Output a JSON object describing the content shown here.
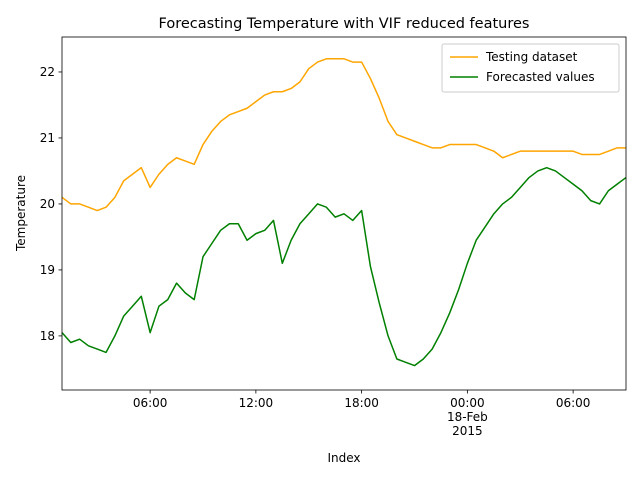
{
  "chart_data": {
    "type": "line",
    "title": "Forecasting Temperature with VIF reduced features",
    "xlabel": "Index",
    "ylabel": "Temperature",
    "x": [
      "2015-02-17T01:00",
      "2015-02-17T01:30",
      "2015-02-17T02:00",
      "2015-02-17T02:30",
      "2015-02-17T03:00",
      "2015-02-17T03:30",
      "2015-02-17T04:00",
      "2015-02-17T04:30",
      "2015-02-17T05:00",
      "2015-02-17T05:30",
      "2015-02-17T06:00",
      "2015-02-17T06:30",
      "2015-02-17T07:00",
      "2015-02-17T07:30",
      "2015-02-17T08:00",
      "2015-02-17T08:30",
      "2015-02-17T09:00",
      "2015-02-17T09:30",
      "2015-02-17T10:00",
      "2015-02-17T10:30",
      "2015-02-17T11:00",
      "2015-02-17T11:30",
      "2015-02-17T12:00",
      "2015-02-17T12:30",
      "2015-02-17T13:00",
      "2015-02-17T13:30",
      "2015-02-17T14:00",
      "2015-02-17T14:30",
      "2015-02-17T15:00",
      "2015-02-17T15:30",
      "2015-02-17T16:00",
      "2015-02-17T16:30",
      "2015-02-17T17:00",
      "2015-02-17T17:30",
      "2015-02-17T18:00",
      "2015-02-17T18:30",
      "2015-02-17T19:00",
      "2015-02-17T19:30",
      "2015-02-17T20:00",
      "2015-02-17T20:30",
      "2015-02-17T21:00",
      "2015-02-17T21:30",
      "2015-02-17T22:00",
      "2015-02-17T22:30",
      "2015-02-17T23:00",
      "2015-02-17T23:30",
      "2015-02-18T00:00",
      "2015-02-18T00:30",
      "2015-02-18T01:00",
      "2015-02-18T01:30",
      "2015-02-18T02:00",
      "2015-02-18T02:30",
      "2015-02-18T03:00",
      "2015-02-18T03:30",
      "2015-02-18T04:00",
      "2015-02-18T04:30",
      "2015-02-18T05:00",
      "2015-02-18T05:30",
      "2015-02-18T06:00",
      "2015-02-18T06:30",
      "2015-02-18T07:00",
      "2015-02-18T07:30",
      "2015-02-18T08:00",
      "2015-02-18T08:30",
      "2015-02-18T09:00"
    ],
    "series": [
      {
        "name": "Testing dataset",
        "color": "#ffa500",
        "values": [
          20.1,
          20.0,
          20.0,
          19.95,
          19.9,
          19.95,
          20.1,
          20.35,
          20.45,
          20.55,
          20.25,
          20.45,
          20.6,
          20.7,
          20.65,
          20.6,
          20.9,
          21.1,
          21.25,
          21.35,
          21.4,
          21.45,
          21.55,
          21.65,
          21.7,
          21.7,
          21.75,
          21.85,
          22.05,
          22.15,
          22.2,
          22.2,
          22.2,
          22.15,
          22.15,
          21.9,
          21.6,
          21.25,
          21.05,
          21.0,
          20.95,
          20.9,
          20.85,
          20.85,
          20.9,
          20.9,
          20.9,
          20.9,
          20.85,
          20.8,
          20.7,
          20.75,
          20.8,
          20.8,
          20.8,
          20.8,
          20.8,
          20.8,
          20.8,
          20.75,
          20.75,
          20.75,
          20.8,
          20.85,
          20.85
        ]
      },
      {
        "name": "Forecasted values",
        "color": "#008000",
        "values": [
          18.05,
          17.9,
          17.95,
          17.85,
          17.8,
          17.75,
          18.0,
          18.3,
          18.45,
          18.6,
          18.05,
          18.45,
          18.55,
          18.8,
          18.65,
          18.55,
          19.2,
          19.4,
          19.6,
          19.7,
          19.7,
          19.45,
          19.55,
          19.6,
          19.75,
          19.1,
          19.45,
          19.7,
          19.85,
          20.0,
          19.95,
          19.8,
          19.85,
          19.75,
          19.9,
          19.05,
          18.5,
          18.0,
          17.65,
          17.6,
          17.55,
          17.65,
          17.8,
          18.05,
          18.35,
          18.7,
          19.1,
          19.45,
          19.65,
          19.85,
          20.0,
          20.1,
          20.25,
          20.4,
          20.5,
          20.55,
          20.5,
          20.4,
          20.3,
          20.2,
          20.05,
          20.0,
          20.2,
          20.3,
          20.4
        ]
      }
    ],
    "xlim": [
      "2015-02-17T01:00",
      "2015-02-18T09:00"
    ],
    "xticks": [
      {
        "value": "2015-02-17T06:00",
        "label": "06:00"
      },
      {
        "value": "2015-02-17T12:00",
        "label": "12:00"
      },
      {
        "value": "2015-02-17T18:00",
        "label": "18:00"
      },
      {
        "value": "2015-02-18T00:00",
        "label": "00:00\n18-Feb\n2015"
      },
      {
        "value": "2015-02-18T06:00",
        "label": "06:00"
      }
    ],
    "ylim": [
      17.18,
      22.53
    ],
    "yticks": [
      18,
      19,
      20,
      21,
      22
    ],
    "legend": "upper right"
  }
}
